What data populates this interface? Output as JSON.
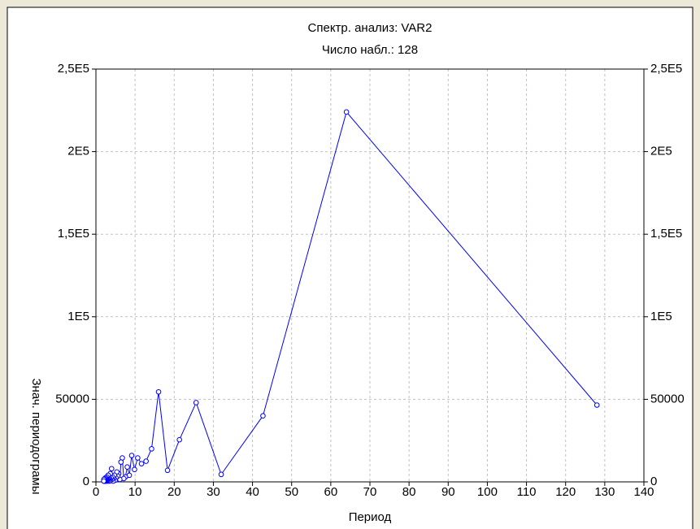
{
  "chart_data": {
    "type": "line",
    "title": "Спектр. анализ: VAR2",
    "subtitle": "Число набл.: 128",
    "x_label": "Период",
    "y_label": "Знач. периодограмы",
    "x": [
      128,
      64,
      42.67,
      32,
      25.6,
      21.33,
      18.29,
      16,
      14.22,
      12.8,
      11.64,
      10.67,
      9.85,
      9.14,
      8.53,
      8,
      7.53,
      7.11,
      6.74,
      6.4,
      6.1,
      5.82,
      5.57,
      5.33,
      5.12,
      4.92,
      4.74,
      4.57,
      4.41,
      4.27,
      4.13,
      4,
      3.88,
      3.76,
      3.66,
      3.56,
      3.46,
      3.37,
      3.28,
      3.2,
      3.12,
      3.05,
      2.98,
      2.91,
      2.84,
      2.78,
      2.72,
      2.67,
      2.61,
      2.56,
      2.51,
      2.46,
      2.42,
      2.37,
      2.33,
      2.29,
      2.25,
      2.21,
      2.17,
      2.13,
      2.1,
      2.06,
      2.03,
      2
    ],
    "series": [
      {
        "name": "VAR2",
        "color": "#0000ff",
        "values": [
          46500,
          224000,
          40000,
          4500,
          48000,
          25500,
          7000,
          54500,
          20000,
          12500,
          11000,
          14500,
          7500,
          16000,
          4000,
          9000,
          3000,
          2000,
          14500,
          12000,
          1500,
          5000,
          3500,
          6000,
          2500,
          1000,
          4000,
          2000,
          500,
          3000,
          1500,
          8000,
          2500,
          1000,
          5000,
          1500,
          500,
          3000,
          2000,
          1000,
          4000,
          500,
          1500,
          2500,
          1000,
          3000,
          500,
          2000,
          1000,
          1500,
          500,
          2500,
          1000,
          500,
          1500,
          2000,
          500,
          1000,
          1500,
          500,
          1000,
          500,
          1500,
          500
        ]
      }
    ],
    "xlim": [
      0,
      140
    ],
    "xticks": [
      0,
      10,
      20,
      30,
      40,
      50,
      60,
      70,
      80,
      90,
      100,
      110,
      120,
      130,
      140
    ],
    "ylim": [
      0,
      250000
    ],
    "yticks": [
      0,
      50000,
      {
        "value": 100000,
        "label": "1E5"
      },
      {
        "value": 150000,
        "label": "1,5E5"
      },
      {
        "value": 200000,
        "label": "2E5"
      },
      {
        "value": 250000,
        "label": "2,5E5"
      }
    ],
    "grid": true
  }
}
